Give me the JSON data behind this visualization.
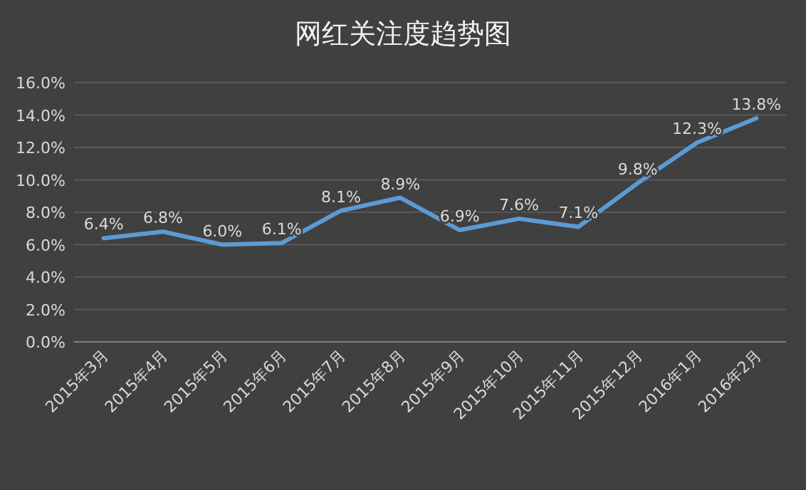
{
  "chart_data": {
    "type": "line",
    "title": "网红关注度趋势图",
    "categories": [
      "2015年3月",
      "2015年4月",
      "2015年5月",
      "2015年6月",
      "2015年7月",
      "2015年8月",
      "2015年9月",
      "2015年10月",
      "2015年11月",
      "2015年12月",
      "2016年1月",
      "2016年2月"
    ],
    "series": [
      {
        "color": "#5b9bd5",
        "values": [
          6.4,
          6.8,
          6.0,
          6.1,
          8.1,
          8.9,
          6.9,
          7.6,
          7.1,
          9.8,
          12.3,
          13.8
        ],
        "value_labels": [
          "6.4%",
          "6.8%",
          "6.0%",
          "6.1%",
          "8.1%",
          "8.9%",
          "6.9%",
          "7.6%",
          "7.1%",
          "9.8%",
          "12.3%",
          "13.8%"
        ]
      }
    ],
    "ylim": [
      0,
      16
    ],
    "yticks": [
      {
        "value": 0,
        "label": "0.0%"
      },
      {
        "value": 2,
        "label": "2.0%"
      },
      {
        "value": 4,
        "label": "4.0%"
      },
      {
        "value": 6,
        "label": "6.0%"
      },
      {
        "value": 8,
        "label": "8.0%"
      },
      {
        "value": 10,
        "label": "10.0%"
      },
      {
        "value": 12,
        "label": "12.0%"
      },
      {
        "value": 14,
        "label": "14.0%"
      },
      {
        "value": 16,
        "label": "16.0%"
      }
    ],
    "grid": "y",
    "marker": "none",
    "line_style": "solid"
  }
}
